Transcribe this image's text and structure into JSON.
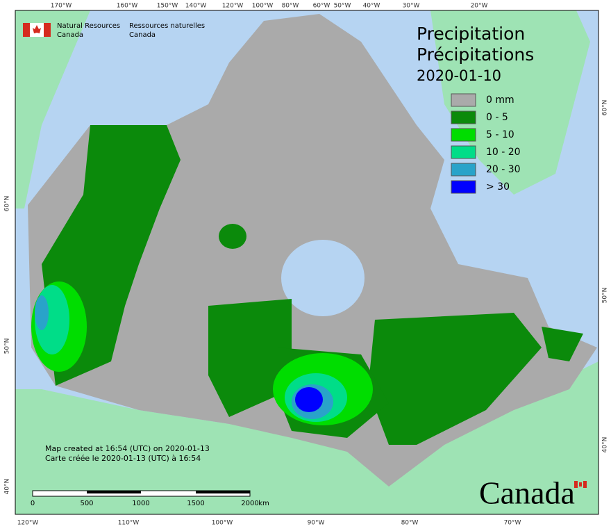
{
  "header": {
    "agency_en": "Natural Resources",
    "agency_en_2": "Canada",
    "agency_fr": "Ressources naturelles",
    "agency_fr_2": "Canada"
  },
  "title": {
    "en": "Precipitation",
    "fr": "Précipitations",
    "date": "2020-01-10"
  },
  "legend": [
    {
      "label": "0 mm",
      "color": "#aaaaaa"
    },
    {
      "label": "0 - 5",
      "color": "#0b8a0b"
    },
    {
      "label": "5 - 10",
      "color": "#00dd00"
    },
    {
      "label": "10 - 20",
      "color": "#00dd88"
    },
    {
      "label": "20 - 30",
      "color": "#29a3c9"
    },
    {
      "label": "> 30",
      "color": "#0000ff"
    }
  ],
  "top_labels": [
    "170°W",
    "160°W",
    "150°W",
    "140°W",
    "120°W",
    "100°W",
    "80°W",
    "60°W",
    "50°W",
    "40°W",
    "30°W",
    "20°W"
  ],
  "bottom_labels": [
    "120°W",
    "110°W",
    "100°W",
    "90°W",
    "80°W",
    "70°W"
  ],
  "left_labels": [
    "60°N",
    "50°N",
    "40°N"
  ],
  "right_labels": [
    "60°N",
    "50°N",
    "40°N"
  ],
  "credits": [
    "Map created at 16:54 (UTC) on 2020-01-13",
    "Carte créée le 2020-01-13 (UTC) à 16:54"
  ],
  "scale_bar": {
    "labels": [
      "0",
      "500",
      "1000",
      "1500",
      "2000"
    ],
    "unit": "km"
  },
  "wordmark": "Canada"
}
